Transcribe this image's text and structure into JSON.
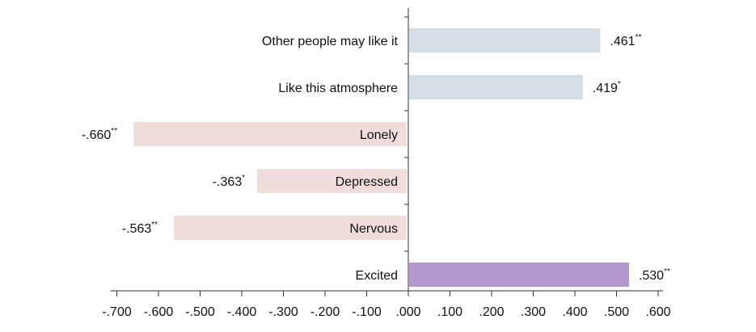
{
  "chart_data": {
    "type": "bar",
    "orientation": "horizontal",
    "categories": [
      "Other people may like it",
      "Like this atmosphere",
      "Lonely",
      "Depressed",
      "Nervous",
      "Excited"
    ],
    "values": [
      0.461,
      0.419,
      -0.66,
      -0.363,
      -0.563,
      0.53
    ],
    "value_labels": [
      ".461",
      ".419",
      "-.660",
      "-.363",
      "-.563",
      ".530"
    ],
    "significance": [
      "**",
      "*",
      "**",
      "*",
      "**",
      "**"
    ],
    "bar_colors": [
      "#d6dde6",
      "#d6dde6",
      "#efdcdb",
      "#efdcdb",
      "#efdcdb",
      "#b497cd"
    ],
    "xlim": [
      -0.7,
      0.6
    ],
    "x_ticks": [
      -0.7,
      -0.6,
      -0.5,
      -0.4,
      -0.3,
      -0.2,
      -0.1,
      0.0,
      0.1,
      0.2,
      0.3,
      0.4,
      0.5,
      0.6
    ],
    "x_tick_labels": [
      "-.700",
      "-.600",
      "-.500",
      "-.400",
      "-.300",
      "-.200",
      "-.100",
      ".000",
      ".100",
      ".200",
      ".300",
      ".400",
      ".500",
      ".600"
    ],
    "grid": false,
    "legend": "none"
  }
}
